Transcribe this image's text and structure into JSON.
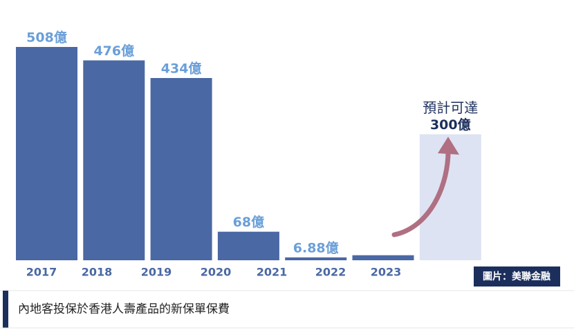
{
  "chart_data": {
    "type": "bar",
    "categories": [
      "2017",
      "2018",
      "2019",
      "2020",
      "2021",
      "2022",
      "2023"
    ],
    "values": [
      508,
      476,
      434,
      68,
      6.88,
      12,
      300
    ],
    "value_labels": [
      "508億",
      "476億",
      "434億",
      "68億",
      "6.88億",
      null,
      "300億"
    ],
    "colors": [
      "#4a68a3",
      "#4a68a3",
      "#4a68a3",
      "#4a68a3",
      "#4a68a3",
      "#4a68a3",
      "#dde3f3"
    ],
    "annotation": "預計可達"
  },
  "image_credit": "圖片：美聯金融",
  "caption": "內地客投保於香港人壽產品的新保單保費"
}
